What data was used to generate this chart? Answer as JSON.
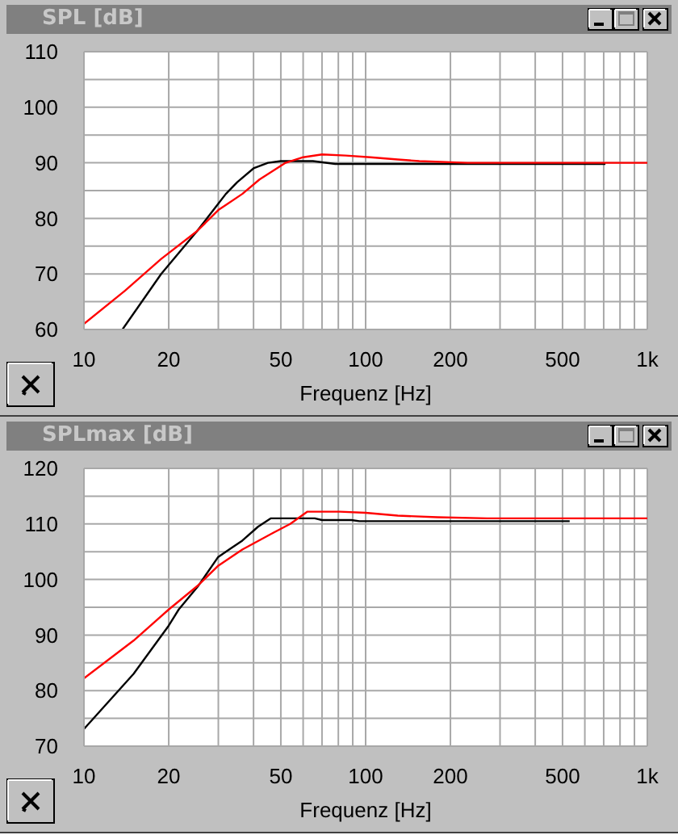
{
  "chart_data": [
    {
      "type": "line",
      "title": "SPL [dB]",
      "xlabel": "Frequenz [Hz]",
      "log": "x",
      "grid": true,
      "marker": "none",
      "line_style": "solid",
      "xlim": [
        10,
        1000
      ],
      "xticks": [
        10,
        20,
        {
          "value": 30,
          "label": null
        },
        {
          "value": 40,
          "label": null
        },
        50,
        {
          "value": 60,
          "label": null
        },
        {
          "value": 70,
          "label": null
        },
        {
          "value": 80,
          "label": null
        },
        {
          "value": 90,
          "label": null
        },
        100,
        200,
        {
          "value": 300,
          "label": null
        },
        {
          "value": 400,
          "label": null
        },
        500,
        {
          "value": 600,
          "label": null
        },
        {
          "value": 700,
          "label": null
        },
        {
          "value": 800,
          "label": null
        },
        {
          "value": 900,
          "label": null
        },
        {
          "value": 1000,
          "label": "1k"
        }
      ],
      "ylim": [
        60,
        110
      ],
      "yticks": [
        60,
        {
          "value": 65,
          "label": null
        },
        70,
        {
          "value": 75,
          "label": null
        },
        80,
        {
          "value": 85,
          "label": null
        },
        90,
        {
          "value": 95,
          "label": null
        },
        100,
        {
          "value": 105,
          "label": null
        },
        110
      ],
      "series": [
        {
          "color": "#000000",
          "x": [
            13.7,
            18.8,
            25.2,
            31.9,
            35,
            40,
            45,
            50,
            65,
            78,
            710
          ],
          "values": [
            60,
            70,
            77.7,
            84.4,
            86.5,
            89,
            90,
            90.3,
            90.3,
            89.8,
            89.8
          ]
        },
        {
          "color": "#ff0000",
          "x": [
            10,
            14,
            18.8,
            25.2,
            30,
            36.5,
            42,
            52,
            60,
            70,
            85,
            104,
            130,
            155,
            230,
            1000
          ],
          "values": [
            61,
            67,
            72.7,
            77.7,
            81.5,
            84.4,
            87,
            90,
            91,
            91.5,
            91.3,
            91,
            90.6,
            90.3,
            90,
            90
          ]
        }
      ]
    },
    {
      "type": "line",
      "title": "SPLmax [dB]",
      "xlabel": "Frequenz [Hz]",
      "log": "x",
      "grid": true,
      "marker": "none",
      "line_style": "solid",
      "xlim": [
        10,
        1000
      ],
      "xticks": [
        10,
        20,
        {
          "value": 30,
          "label": null
        },
        {
          "value": 40,
          "label": null
        },
        50,
        {
          "value": 60,
          "label": null
        },
        {
          "value": 70,
          "label": null
        },
        {
          "value": 80,
          "label": null
        },
        {
          "value": 90,
          "label": null
        },
        100,
        200,
        {
          "value": 300,
          "label": null
        },
        {
          "value": 400,
          "label": null
        },
        500,
        {
          "value": 600,
          "label": null
        },
        {
          "value": 700,
          "label": null
        },
        {
          "value": 800,
          "label": null
        },
        {
          "value": 900,
          "label": null
        },
        {
          "value": 1000,
          "label": "1k"
        }
      ],
      "ylim": [
        70,
        120
      ],
      "yticks": [
        70,
        {
          "value": 75,
          "label": null
        },
        80,
        {
          "value": 85,
          "label": null
        },
        90,
        {
          "value": 95,
          "label": null
        },
        100,
        {
          "value": 105,
          "label": null
        },
        110,
        {
          "value": 115,
          "label": null
        },
        120
      ],
      "series": [
        {
          "color": "#000000",
          "x": [
            10,
            15,
            20,
            21.7,
            25.5,
            29.9,
            33,
            36.5,
            41.5,
            46,
            66,
            70,
            89,
            95,
            530
          ],
          "values": [
            73.1,
            83,
            91.7,
            94.6,
            98.9,
            104,
            105.5,
            107,
            109.5,
            111,
            111,
            110.7,
            110.7,
            110.5,
            110.5
          ]
        },
        {
          "color": "#ff0000",
          "x": [
            10,
            15,
            20,
            25.5,
            30,
            36.5,
            47,
            54,
            62,
            81,
            100,
            130,
            180,
            270,
            1000
          ],
          "values": [
            82.2,
            89,
            94.6,
            99,
            102.5,
            105.4,
            108.4,
            110,
            112.2,
            112.2,
            112,
            111.5,
            111.2,
            111,
            111
          ]
        }
      ]
    }
  ]
}
